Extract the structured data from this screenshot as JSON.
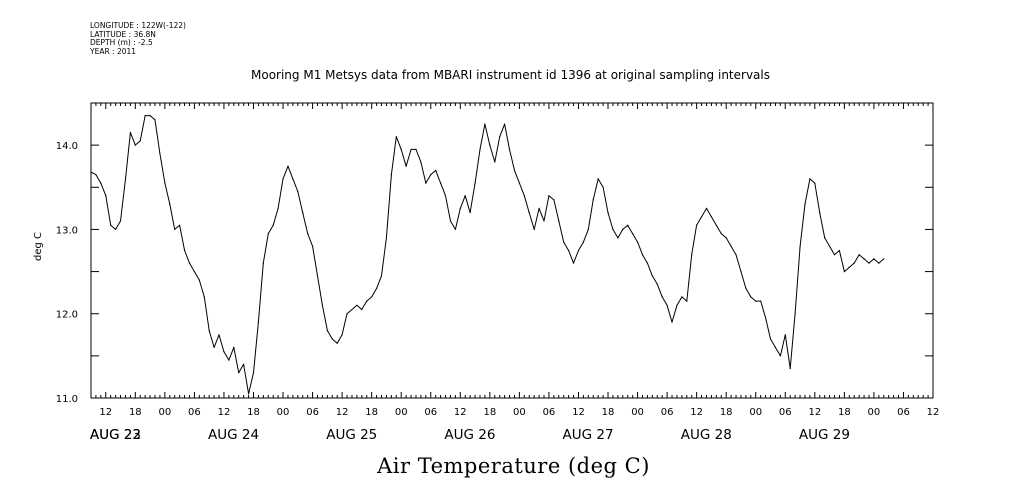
{
  "meta": {
    "longitude": "LONGITUDE : 122W(-122)",
    "latitude": "LATITUDE : 36.8N",
    "depth": "DEPTH (m) : -2.5",
    "year": "YEAR : 2011"
  },
  "chart_data": {
    "type": "line",
    "title": "Mooring M1 Metsys data from MBARI instrument id 1396 at original sampling intervals",
    "xlabel": "Air Temperature (deg C)",
    "ylabel": "deg C",
    "ylim": [
      11.0,
      14.5
    ],
    "y_ticks": [
      "11.0",
      "12.0",
      "13.0",
      "14.0"
    ],
    "x_range_hours": [
      "AUG 22 09:00",
      "AUG 29 12:00"
    ],
    "hour_ticks": [
      "12",
      "18",
      "00",
      "06",
      "12",
      "18",
      "00",
      "06",
      "12",
      "18",
      "00",
      "06",
      "12",
      "18",
      "00",
      "06",
      "12",
      "18",
      "00",
      "06",
      "12",
      "18",
      "00",
      "06",
      "12",
      "18",
      "00",
      "06",
      "12",
      "18",
      "00",
      "06"
    ],
    "date_labels": [
      "AUG 22",
      "AUG 23",
      "AUG 24",
      "AUG 25",
      "AUG 26",
      "AUG 27",
      "AUG 28",
      "AUG 29"
    ],
    "series": [
      {
        "x_unit": "date-hour",
        "points": [
          [
            "AUG 22 09:00",
            13.68
          ],
          [
            "AUG 22 10:00",
            13.65
          ],
          [
            "AUG 22 11:00",
            13.55
          ],
          [
            "AUG 22 12:00",
            13.4
          ],
          [
            "AUG 22 13:00",
            13.05
          ],
          [
            "AUG 22 14:00",
            13.0
          ],
          [
            "AUG 22 15:00",
            13.1
          ],
          [
            "AUG 22 16:00",
            13.6
          ],
          [
            "AUG 22 17:00",
            14.15
          ],
          [
            "AUG 22 18:00",
            14.0
          ],
          [
            "AUG 22 19:00",
            14.05
          ],
          [
            "AUG 22 20:00",
            14.35
          ],
          [
            "AUG 22 21:00",
            14.35
          ],
          [
            "AUG 22 22:00",
            14.3
          ],
          [
            "AUG 22 23:00",
            13.9
          ],
          [
            "AUG 23 00:00",
            13.55
          ],
          [
            "AUG 23 01:00",
            13.3
          ],
          [
            "AUG 23 02:00",
            13.0
          ],
          [
            "AUG 23 03:00",
            13.05
          ],
          [
            "AUG 23 04:00",
            12.75
          ],
          [
            "AUG 23 05:00",
            12.6
          ],
          [
            "AUG 23 06:00",
            12.5
          ],
          [
            "AUG 23 07:00",
            12.4
          ],
          [
            "AUG 23 08:00",
            12.2
          ],
          [
            "AUG 23 09:00",
            11.8
          ],
          [
            "AUG 23 10:00",
            11.6
          ],
          [
            "AUG 23 11:00",
            11.75
          ],
          [
            "AUG 23 12:00",
            11.55
          ],
          [
            "AUG 23 13:00",
            11.45
          ],
          [
            "AUG 23 14:00",
            11.6
          ],
          [
            "AUG 23 15:00",
            11.3
          ],
          [
            "AUG 23 16:00",
            11.4
          ],
          [
            "AUG 23 17:00",
            11.05
          ],
          [
            "AUG 23 18:00",
            11.3
          ],
          [
            "AUG 23 19:00",
            11.9
          ],
          [
            "AUG 23 20:00",
            12.6
          ],
          [
            "AUG 23 21:00",
            12.95
          ],
          [
            "AUG 23 22:00",
            13.05
          ],
          [
            "AUG 23 23:00",
            13.25
          ],
          [
            "AUG 24 00:00",
            13.6
          ],
          [
            "AUG 24 01:00",
            13.75
          ],
          [
            "AUG 24 02:00",
            13.6
          ],
          [
            "AUG 24 03:00",
            13.45
          ],
          [
            "AUG 24 04:00",
            13.2
          ],
          [
            "AUG 24 05:00",
            12.95
          ],
          [
            "AUG 24 06:00",
            12.8
          ],
          [
            "AUG 24 07:00",
            12.45
          ],
          [
            "AUG 24 08:00",
            12.1
          ],
          [
            "AUG 24 09:00",
            11.8
          ],
          [
            "AUG 24 10:00",
            11.7
          ],
          [
            "AUG 24 11:00",
            11.65
          ],
          [
            "AUG 24 12:00",
            11.75
          ],
          [
            "AUG 24 13:00",
            12.0
          ],
          [
            "AUG 24 14:00",
            12.05
          ],
          [
            "AUG 24 15:00",
            12.1
          ],
          [
            "AUG 24 16:00",
            12.05
          ],
          [
            "AUG 24 17:00",
            12.15
          ],
          [
            "AUG 24 18:00",
            12.2
          ],
          [
            "AUG 24 19:00",
            12.3
          ],
          [
            "AUG 24 20:00",
            12.45
          ],
          [
            "AUG 24 21:00",
            12.9
          ],
          [
            "AUG 24 22:00",
            13.65
          ],
          [
            "AUG 24 23:00",
            14.1
          ],
          [
            "AUG 25 00:00",
            13.95
          ],
          [
            "AUG 25 01:00",
            13.75
          ],
          [
            "AUG 25 02:00",
            13.95
          ],
          [
            "AUG 25 03:00",
            13.95
          ],
          [
            "AUG 25 04:00",
            13.8
          ],
          [
            "AUG 25 05:00",
            13.55
          ],
          [
            "AUG 25 06:00",
            13.65
          ],
          [
            "AUG 25 07:00",
            13.7
          ],
          [
            "AUG 25 08:00",
            13.55
          ],
          [
            "AUG 25 09:00",
            13.4
          ],
          [
            "AUG 25 10:00",
            13.1
          ],
          [
            "AUG 25 11:00",
            13.0
          ],
          [
            "AUG 25 12:00",
            13.25
          ],
          [
            "AUG 25 13:00",
            13.4
          ],
          [
            "AUG 25 14:00",
            13.2
          ],
          [
            "AUG 25 15:00",
            13.55
          ],
          [
            "AUG 25 16:00",
            13.95
          ],
          [
            "AUG 25 17:00",
            14.25
          ],
          [
            "AUG 25 18:00",
            14.0
          ],
          [
            "AUG 25 19:00",
            13.8
          ],
          [
            "AUG 25 20:00",
            14.1
          ],
          [
            "AUG 25 21:00",
            14.25
          ],
          [
            "AUG 25 22:00",
            13.95
          ],
          [
            "AUG 25 23:00",
            13.7
          ],
          [
            "AUG 26 00:00",
            13.55
          ],
          [
            "AUG 26 01:00",
            13.4
          ],
          [
            "AUG 26 02:00",
            13.2
          ],
          [
            "AUG 26 03:00",
            13.0
          ],
          [
            "AUG 26 04:00",
            13.25
          ],
          [
            "AUG 26 05:00",
            13.1
          ],
          [
            "AUG 26 06:00",
            13.4
          ],
          [
            "AUG 26 07:00",
            13.35
          ],
          [
            "AUG 26 08:00",
            13.1
          ],
          [
            "AUG 26 09:00",
            12.85
          ],
          [
            "AUG 26 10:00",
            12.75
          ],
          [
            "AUG 26 11:00",
            12.6
          ],
          [
            "AUG 26 12:00",
            12.75
          ],
          [
            "AUG 26 13:00",
            12.85
          ],
          [
            "AUG 26 14:00",
            13.0
          ],
          [
            "AUG 26 15:00",
            13.35
          ],
          [
            "AUG 26 16:00",
            13.6
          ],
          [
            "AUG 26 17:00",
            13.5
          ],
          [
            "AUG 26 18:00",
            13.2
          ],
          [
            "AUG 26 19:00",
            13.0
          ],
          [
            "AUG 26 20:00",
            12.9
          ],
          [
            "AUG 26 21:00",
            13.0
          ],
          [
            "AUG 26 22:00",
            13.05
          ],
          [
            "AUG 26 23:00",
            12.95
          ],
          [
            "AUG 27 00:00",
            12.85
          ],
          [
            "AUG 27 01:00",
            12.7
          ],
          [
            "AUG 27 02:00",
            12.6
          ],
          [
            "AUG 27 03:00",
            12.45
          ],
          [
            "AUG 27 04:00",
            12.35
          ],
          [
            "AUG 27 05:00",
            12.2
          ],
          [
            "AUG 27 06:00",
            12.1
          ],
          [
            "AUG 27 07:00",
            11.9
          ],
          [
            "AUG 27 08:00",
            12.1
          ],
          [
            "AUG 27 09:00",
            12.2
          ],
          [
            "AUG 27 10:00",
            12.15
          ],
          [
            "AUG 27 11:00",
            12.7
          ],
          [
            "AUG 27 12:00",
            13.05
          ],
          [
            "AUG 27 13:00",
            13.15
          ],
          [
            "AUG 27 14:00",
            13.25
          ],
          [
            "AUG 27 15:00",
            13.15
          ],
          [
            "AUG 27 16:00",
            13.05
          ],
          [
            "AUG 27 17:00",
            12.95
          ],
          [
            "AUG 27 18:00",
            12.9
          ],
          [
            "AUG 27 19:00",
            12.8
          ],
          [
            "AUG 27 20:00",
            12.7
          ],
          [
            "AUG 27 21:00",
            12.5
          ],
          [
            "AUG 27 22:00",
            12.3
          ],
          [
            "AUG 27 23:00",
            12.2
          ],
          [
            "AUG 28 00:00",
            12.15
          ],
          [
            "AUG 28 01:00",
            12.15
          ],
          [
            "AUG 28 02:00",
            11.95
          ],
          [
            "AUG 28 03:00",
            11.7
          ],
          [
            "AUG 28 04:00",
            11.6
          ],
          [
            "AUG 28 05:00",
            11.5
          ],
          [
            "AUG 28 06:00",
            11.75
          ],
          [
            "AUG 28 07:00",
            11.35
          ],
          [
            "AUG 28 08:00",
            12.0
          ],
          [
            "AUG 28 09:00",
            12.8
          ],
          [
            "AUG 28 10:00",
            13.3
          ],
          [
            "AUG 28 11:00",
            13.6
          ],
          [
            "AUG 28 12:00",
            13.55
          ],
          [
            "AUG 28 13:00",
            13.2
          ],
          [
            "AUG 28 14:00",
            12.9
          ],
          [
            "AUG 28 15:00",
            12.8
          ],
          [
            "AUG 28 16:00",
            12.7
          ],
          [
            "AUG 28 17:00",
            12.75
          ],
          [
            "AUG 28 18:00",
            12.5
          ],
          [
            "AUG 28 19:00",
            12.55
          ],
          [
            "AUG 28 20:00",
            12.6
          ],
          [
            "AUG 28 21:00",
            12.7
          ],
          [
            "AUG 28 22:00",
            12.65
          ],
          [
            "AUG 28 23:00",
            12.6
          ],
          [
            "AUG 29 00:00",
            12.65
          ],
          [
            "AUG 29 01:00",
            12.6
          ],
          [
            "AUG 29 02:00",
            12.65
          ]
        ]
      }
    ],
    "grid": false,
    "colors": {
      "line": "#000000",
      "background": "#ffffff"
    }
  }
}
